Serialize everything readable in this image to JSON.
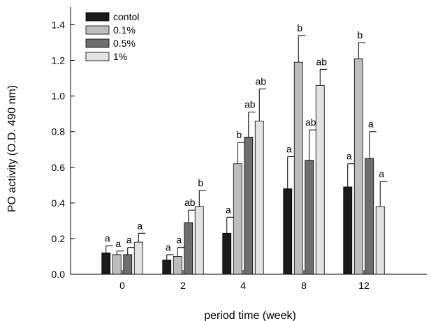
{
  "chart_data": {
    "type": "bar",
    "xlabel": "period time (week)",
    "ylabel": "PO activity (O.D. 490 nm)",
    "ylim": [
      0,
      1.5
    ],
    "yticks": [
      0.0,
      0.2,
      0.4,
      0.6,
      0.8,
      1.0,
      1.2,
      1.4
    ],
    "ytick_labels": [
      "0.0",
      "0.2",
      "0.4",
      "0.6",
      "0.8",
      "1.0",
      "1.2",
      "1.4"
    ],
    "categories": [
      "0",
      "2",
      "4",
      "8",
      "12"
    ],
    "legend_position": "top-left",
    "grid": false,
    "error_bars": "upper",
    "series": [
      {
        "name": "contol",
        "color": "#1a1a1a",
        "values": [
          0.12,
          0.08,
          0.23,
          0.48,
          0.49
        ],
        "errors": [
          0.04,
          0.03,
          0.09,
          0.18,
          0.13
        ],
        "labels": [
          "a",
          "a",
          "a",
          "a",
          "a"
        ]
      },
      {
        "name": "0.1%",
        "color": "#bdbdbd",
        "values": [
          0.11,
          0.1,
          0.62,
          1.19,
          1.21
        ],
        "errors": [
          0.02,
          0.05,
          0.12,
          0.15,
          0.09
        ],
        "labels": [
          "a",
          "a",
          "b",
          "b",
          "b"
        ]
      },
      {
        "name": "0.5%",
        "color": "#6e6e6e",
        "values": [
          0.11,
          0.29,
          0.77,
          0.64,
          0.65
        ],
        "errors": [
          0.04,
          0.07,
          0.14,
          0.17,
          0.15
        ],
        "labels": [
          "a",
          "ab",
          "ab",
          "ab",
          "a"
        ]
      },
      {
        "name": "1%",
        "color": "#e3e3e3",
        "values": [
          0.18,
          0.38,
          0.86,
          1.06,
          0.38
        ],
        "errors": [
          0.05,
          0.09,
          0.18,
          0.09,
          0.14
        ],
        "labels": [
          "a",
          "b",
          "ab",
          "ab",
          "a"
        ]
      }
    ]
  }
}
